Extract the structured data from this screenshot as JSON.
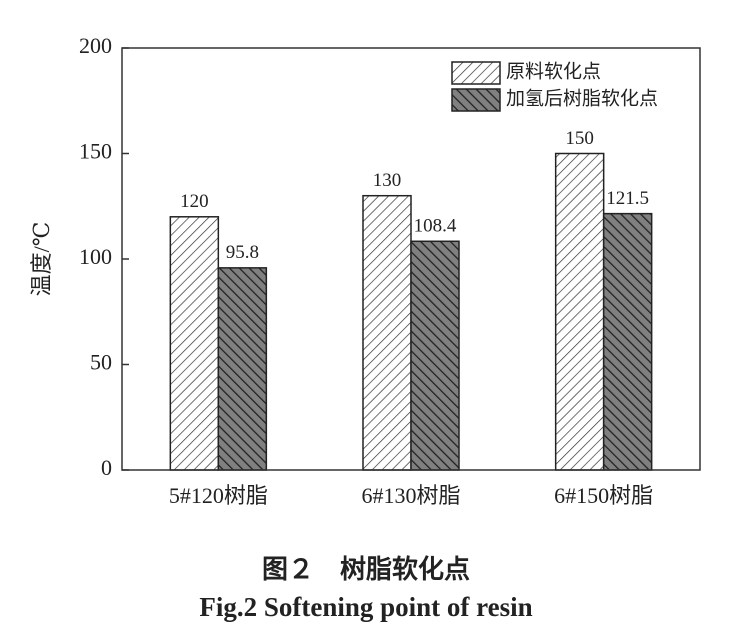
{
  "chart_data": {
    "type": "bar",
    "y_label": "温度/℃",
    "categories": [
      "5#120树脂",
      "6#130树脂",
      "6#150树脂"
    ],
    "series": [
      {
        "name": "原料软化点",
        "color": "#ffffff",
        "values": [
          120,
          130,
          150
        ]
      },
      {
        "name": "加氢后树脂软化点",
        "color": "#808080",
        "values": [
          95.8,
          108.4,
          121.5
        ]
      }
    ],
    "ylim": [
      0,
      200
    ],
    "yticks": [
      0,
      50,
      100,
      150,
      200
    ],
    "legend": "upper right",
    "caption": "图２　树脂软化点",
    "caption_en": "Fig.2 Softening point of resin"
  }
}
